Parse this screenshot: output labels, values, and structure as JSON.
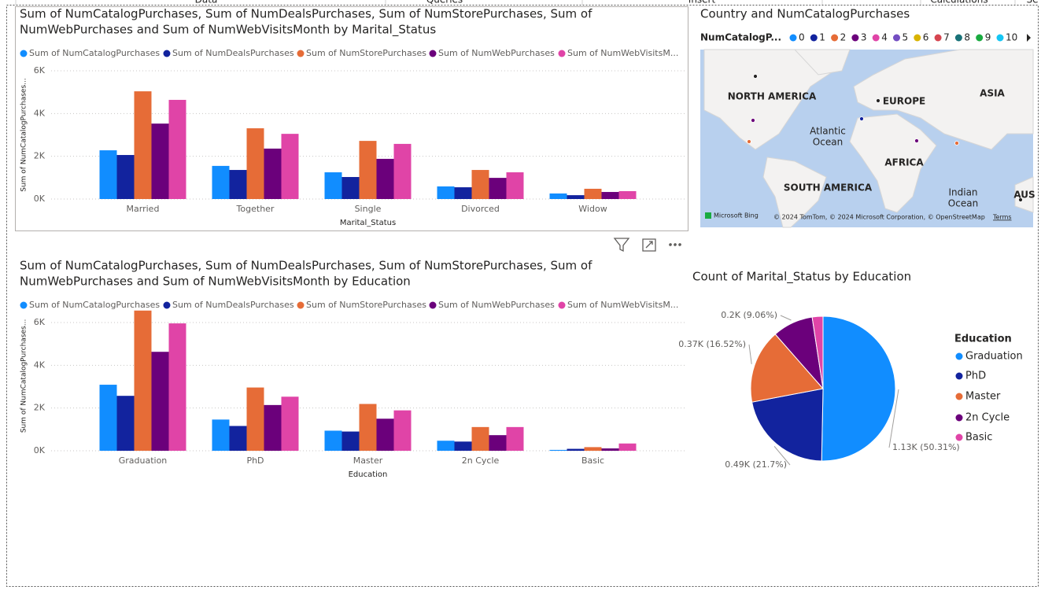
{
  "ribbon": [
    "Data",
    "Queries",
    "Insert",
    "Calculations",
    "Se"
  ],
  "chart_data": [
    {
      "type": "bar",
      "title": [
        "Sum of NumCatalogPurchases, Sum of NumDealsPurchases, Sum of NumStorePurchases, Sum of",
        "NumWebPurchases and Sum of NumWebVisitsMonth by Marital_Status"
      ],
      "x_label": "Marital_Status",
      "y_label": "Sum of NumCatalogPurchases...",
      "categories": [
        "Married",
        "Together",
        "Single",
        "Divorced",
        "Widow"
      ],
      "series": [
        {
          "name": "Sum of NumCatalogPurchases",
          "color": "#118DFF",
          "values": [
            2280,
            1550,
            1250,
            590,
            260
          ]
        },
        {
          "name": "Sum of NumDealsPurchases",
          "color": "#12239E",
          "values": [
            2060,
            1360,
            1030,
            550,
            180
          ]
        },
        {
          "name": "Sum of NumStorePurchases",
          "color": "#E66C37",
          "values": [
            5040,
            3310,
            2720,
            1360,
            480
          ]
        },
        {
          "name": "Sum of NumWebPurchases",
          "color": "#6B007B",
          "values": [
            3530,
            2360,
            1880,
            990,
            330
          ]
        },
        {
          "name": "Sum of NumWebVisitsM...",
          "color": "#E044A7",
          "values": [
            4640,
            3050,
            2580,
            1250,
            370
          ]
        }
      ],
      "ylim": [
        0,
        6000
      ],
      "yticks": [
        {
          "value": 0,
          "label": "0K"
        },
        {
          "value": 2000,
          "label": "2K"
        },
        {
          "value": 4000,
          "label": "4K"
        },
        {
          "value": 6000,
          "label": "6K"
        }
      ],
      "grid": true
    },
    {
      "type": "bar",
      "title": [
        "Sum of NumCatalogPurchases, Sum of NumDealsPurchases, Sum of NumStorePurchases, Sum of",
        "NumWebPurchases and Sum of NumWebVisitsMonth by Education"
      ],
      "x_label": "Education",
      "y_label": "Sum of NumCatalogPurchases...",
      "categories": [
        "Graduation",
        "PhD",
        "Master",
        "2n Cycle",
        "Basic"
      ],
      "series": [
        {
          "name": "Sum of NumCatalogPurchases",
          "color": "#118DFF",
          "values": [
            3090,
            1460,
            940,
            470,
            40
          ]
        },
        {
          "name": "Sum of NumDealsPurchases",
          "color": "#12239E",
          "values": [
            2570,
            1160,
            900,
            430,
            90
          ]
        },
        {
          "name": "Sum of NumStorePurchases",
          "color": "#E66C37",
          "values": [
            6560,
            2960,
            2190,
            1110,
            170
          ]
        },
        {
          "name": "Sum of NumWebPurchases",
          "color": "#6B007B",
          "values": [
            4630,
            2140,
            1500,
            730,
            110
          ]
        },
        {
          "name": "Sum of NumWebVisitsM...",
          "color": "#E044A7",
          "values": [
            5960,
            2530,
            1890,
            1110,
            340
          ]
        }
      ],
      "ylim": [
        0,
        7000
      ],
      "yticks": [
        {
          "value": 0,
          "label": "0K"
        },
        {
          "value": 2000,
          "label": "2K"
        },
        {
          "value": 4000,
          "label": "4K"
        },
        {
          "value": 6000,
          "label": "6K"
        }
      ],
      "grid": true
    },
    {
      "type": "pie",
      "title": "Count of Marital_Status by Education",
      "legend_title": "Education",
      "categories": [
        "Graduation",
        "PhD",
        "Master",
        "2n Cycle",
        "Basic"
      ],
      "values": [
        1127,
        486,
        370,
        203,
        54
      ],
      "value_labels": [
        "1.13K (50.31%)",
        "0.49K (21.7%)",
        "0.37K (16.52%)",
        "0.2K (9.06%)",
        null
      ],
      "colors": [
        "#118DFF",
        "#12239E",
        "#E66C37",
        "#6B007B",
        "#E044A7"
      ]
    }
  ],
  "map": {
    "title": "Country and NumCatalogPurchases",
    "legend_title": "NumCatalogP...",
    "legend": [
      {
        "label": "0",
        "color": "#118DFF"
      },
      {
        "label": "1",
        "color": "#12239E"
      },
      {
        "label": "2",
        "color": "#E66C37"
      },
      {
        "label": "3",
        "color": "#6B007B"
      },
      {
        "label": "4",
        "color": "#E044A7"
      },
      {
        "label": "5",
        "color": "#744EC2"
      },
      {
        "label": "6",
        "color": "#D9B300"
      },
      {
        "label": "7",
        "color": "#D64550"
      },
      {
        "label": "8",
        "color": "#197278"
      },
      {
        "label": "9",
        "color": "#1AAB40"
      },
      {
        "label": "10",
        "color": "#15C6F4"
      }
    ],
    "regions": [
      "NORTH AMERICA",
      "EUROPE",
      "ASIA",
      "AFRICA",
      "SOUTH AMERICA",
      "AUS"
    ],
    "oceans": [
      "Atlantic",
      "Ocean",
      "Indian",
      "Ocean"
    ],
    "logo": "Microsoft Bing",
    "attribution": "© 2024 TomTom, © 2024 Microsoft Corporation, © OpenStreetMap",
    "terms": "Terms"
  }
}
